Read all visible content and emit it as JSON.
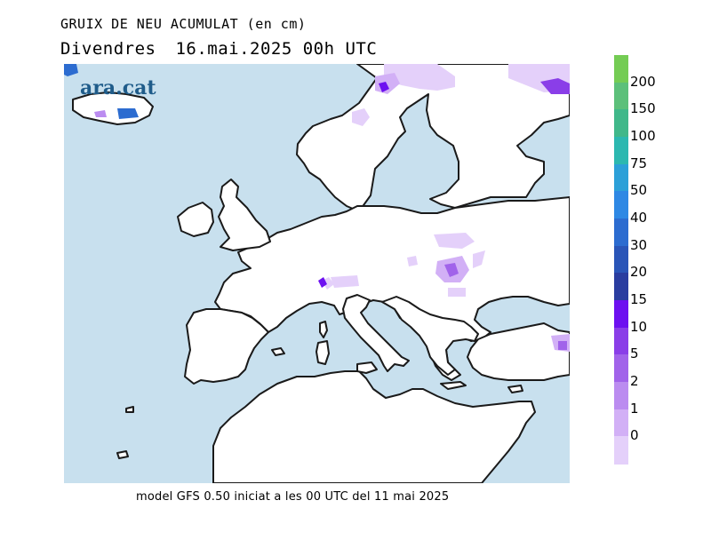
{
  "header": {
    "variable": "GRUIX DE NEU ACUMULAT (en cm)",
    "weekday": "Divendres",
    "datetime": "16.mai.2025 00h UTC"
  },
  "map": {
    "region": "Europe",
    "sea_color": "#c8e0ee",
    "land_color": "#ffffff",
    "coast_color": "#1a1a1a",
    "logo": "ara.cat"
  },
  "footer": "model GFS 0.50 iniciat a les 00 UTC del 11 mai 2025",
  "legend": {
    "labels": [
      "0",
      "1",
      "2",
      "5",
      "10",
      "15",
      "20",
      "30",
      "40",
      "50",
      "75",
      "100",
      "150",
      "200"
    ],
    "colors": [
      "#e4d0fa",
      "#d2b0f6",
      "#bb8cf0",
      "#a163ea",
      "#8a3ee8",
      "#6d10f0",
      "#2a3da0",
      "#2a55b8",
      "#2c6cd0",
      "#2e88e4",
      "#2ca0d8",
      "#2cb8b0",
      "#40b88a",
      "#5cc07a",
      "#74cc54"
    ]
  }
}
